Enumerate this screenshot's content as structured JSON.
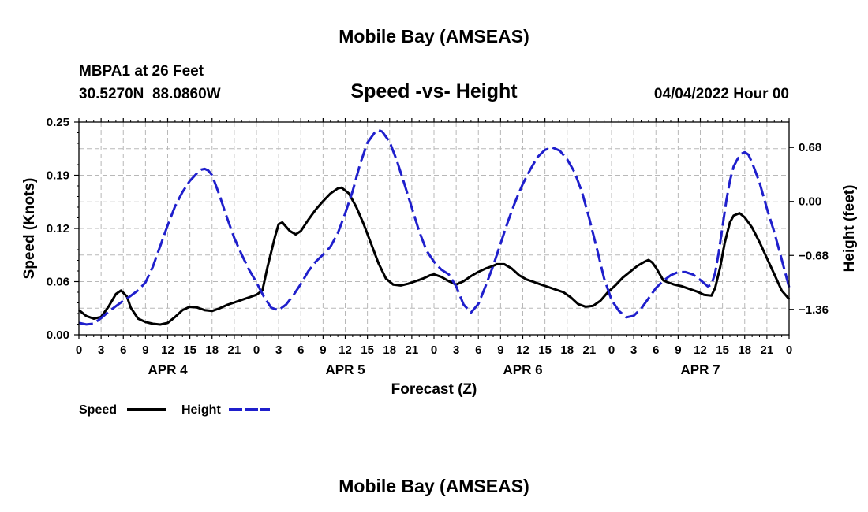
{
  "page": {
    "title": "Mobile Bay (AMSEAS)",
    "footer_title": "Mobile Bay (AMSEAS)"
  },
  "station": {
    "name_line": "MBPA1 at 26 Feet",
    "coords_line": "30.5270N  88.0860W",
    "date_line": "04/04/2022 Hour 00"
  },
  "chart_data": {
    "type": "line",
    "title": "Speed -vs- Height",
    "xlabel": "Forecast (Z)",
    "ylabel": "Speed (Knots)",
    "y2label": "Height (feet)",
    "xlim": [
      0,
      96
    ],
    "ylim": [
      0,
      0.25
    ],
    "y2lim": [
      -1.68,
      1.0
    ],
    "yticks": [
      "0.00",
      "0.06",
      "0.12",
      "0.19",
      "0.25"
    ],
    "y2ticks": [
      "0.68",
      "0.00",
      "−0.68",
      "−1.36"
    ],
    "y2tick_values": [
      0.68,
      0.0,
      -0.68,
      -1.36
    ],
    "xtick_labels": [
      "0",
      "3",
      "6",
      "9",
      "12",
      "15",
      "18",
      "21",
      "0",
      "3",
      "6",
      "9",
      "12",
      "15",
      "18",
      "21",
      "0",
      "3",
      "6",
      "9",
      "12",
      "15",
      "18",
      "21",
      "0",
      "3",
      "6",
      "9",
      "12",
      "15",
      "18",
      "21",
      "0"
    ],
    "day_labels": [
      {
        "label": "APR 4",
        "x": 12
      },
      {
        "label": "APR 5",
        "x": 36
      },
      {
        "label": "APR 6",
        "x": 60
      },
      {
        "label": "APR 7",
        "x": 84
      }
    ],
    "grid": true,
    "series": [
      {
        "name": "Speed",
        "color": "#000000",
        "axis": "left",
        "style": "solid",
        "points": [
          [
            0,
            0.029
          ],
          [
            1,
            0.022
          ],
          [
            2,
            0.019
          ],
          [
            3,
            0.021
          ],
          [
            4,
            0.033
          ],
          [
            5,
            0.048
          ],
          [
            5.7,
            0.052
          ],
          [
            6.5,
            0.045
          ],
          [
            7,
            0.032
          ],
          [
            8,
            0.019
          ],
          [
            9,
            0.015
          ],
          [
            10,
            0.013
          ],
          [
            11,
            0.012
          ],
          [
            12,
            0.014
          ],
          [
            13,
            0.021
          ],
          [
            14,
            0.029
          ],
          [
            15,
            0.033
          ],
          [
            16,
            0.032
          ],
          [
            17,
            0.029
          ],
          [
            18,
            0.028
          ],
          [
            19,
            0.031
          ],
          [
            20,
            0.035
          ],
          [
            21,
            0.038
          ],
          [
            22,
            0.041
          ],
          [
            23,
            0.044
          ],
          [
            24,
            0.047
          ],
          [
            24.8,
            0.052
          ],
          [
            25.5,
            0.08
          ],
          [
            26.5,
            0.115
          ],
          [
            27,
            0.13
          ],
          [
            27.5,
            0.132
          ],
          [
            28.5,
            0.122
          ],
          [
            29.3,
            0.118
          ],
          [
            30,
            0.122
          ],
          [
            31,
            0.135
          ],
          [
            32,
            0.147
          ],
          [
            33,
            0.157
          ],
          [
            34,
            0.166
          ],
          [
            35,
            0.172
          ],
          [
            35.5,
            0.173
          ],
          [
            36.5,
            0.166
          ],
          [
            37.5,
            0.15
          ],
          [
            38.5,
            0.13
          ],
          [
            39.5,
            0.107
          ],
          [
            40.5,
            0.084
          ],
          [
            41.5,
            0.066
          ],
          [
            42.5,
            0.059
          ],
          [
            43.5,
            0.058
          ],
          [
            44.5,
            0.06
          ],
          [
            45.5,
            0.063
          ],
          [
            46.5,
            0.066
          ],
          [
            47.5,
            0.07
          ],
          [
            48,
            0.071
          ],
          [
            49,
            0.068
          ],
          [
            50,
            0.063
          ],
          [
            51,
            0.059
          ],
          [
            52,
            0.063
          ],
          [
            53,
            0.069
          ],
          [
            54,
            0.074
          ],
          [
            55,
            0.078
          ],
          [
            56,
            0.081
          ],
          [
            56.5,
            0.083
          ],
          [
            57,
            0.083
          ],
          [
            57.5,
            0.083
          ],
          [
            58.5,
            0.078
          ],
          [
            59.5,
            0.07
          ],
          [
            60.5,
            0.065
          ],
          [
            61.5,
            0.062
          ],
          [
            62.5,
            0.059
          ],
          [
            63.5,
            0.056
          ],
          [
            64.5,
            0.053
          ],
          [
            65.5,
            0.05
          ],
          [
            66.5,
            0.044
          ],
          [
            67.5,
            0.036
          ],
          [
            68.5,
            0.033
          ],
          [
            69.5,
            0.034
          ],
          [
            70.5,
            0.04
          ],
          [
            71.5,
            0.05
          ],
          [
            72.5,
            0.058
          ],
          [
            73.5,
            0.067
          ],
          [
            74.5,
            0.074
          ],
          [
            75.5,
            0.081
          ],
          [
            76.5,
            0.086
          ],
          [
            77,
            0.088
          ],
          [
            77.5,
            0.085
          ],
          [
            78,
            0.079
          ],
          [
            79,
            0.064
          ],
          [
            79.5,
            0.062
          ],
          [
            80.5,
            0.059
          ],
          [
            81.5,
            0.057
          ],
          [
            82.5,
            0.054
          ],
          [
            83.5,
            0.051
          ],
          [
            84.5,
            0.047
          ],
          [
            85.5,
            0.046
          ],
          [
            86,
            0.055
          ],
          [
            86.7,
            0.08
          ],
          [
            87.3,
            0.108
          ],
          [
            88,
            0.132
          ],
          [
            88.5,
            0.14
          ],
          [
            89.3,
            0.143
          ],
          [
            90,
            0.138
          ],
          [
            91,
            0.126
          ],
          [
            92,
            0.109
          ],
          [
            93,
            0.09
          ],
          [
            94,
            0.071
          ],
          [
            95,
            0.052
          ],
          [
            96,
            0.042
          ]
        ]
      },
      {
        "name": "Height",
        "color": "#1f1fcc",
        "axis": "right",
        "style": "dashed",
        "points": [
          [
            0,
            -1.53
          ],
          [
            1,
            -1.55
          ],
          [
            2,
            -1.54
          ],
          [
            3,
            -1.47
          ],
          [
            4,
            -1.39
          ],
          [
            5,
            -1.32
          ],
          [
            6,
            -1.25
          ],
          [
            7,
            -1.19
          ],
          [
            8,
            -1.12
          ],
          [
            9,
            -1.02
          ],
          [
            10,
            -0.82
          ],
          [
            11,
            -0.56
          ],
          [
            12,
            -0.3
          ],
          [
            13,
            -0.06
          ],
          [
            14,
            0.12
          ],
          [
            15,
            0.26
          ],
          [
            16,
            0.36
          ],
          [
            16.5,
            0.4
          ],
          [
            17,
            0.41
          ],
          [
            17.5,
            0.39
          ],
          [
            18,
            0.33
          ],
          [
            19,
            0.08
          ],
          [
            20,
            -0.2
          ],
          [
            21,
            -0.46
          ],
          [
            22,
            -0.67
          ],
          [
            23,
            -0.86
          ],
          [
            24,
            -1.02
          ],
          [
            25,
            -1.2
          ],
          [
            26,
            -1.34
          ],
          [
            27,
            -1.37
          ],
          [
            28,
            -1.3
          ],
          [
            29,
            -1.18
          ],
          [
            30,
            -1.04
          ],
          [
            31,
            -0.88
          ],
          [
            32,
            -0.76
          ],
          [
            33,
            -0.67
          ],
          [
            34,
            -0.57
          ],
          [
            35,
            -0.4
          ],
          [
            36,
            -0.15
          ],
          [
            37,
            0.13
          ],
          [
            38,
            0.47
          ],
          [
            39,
            0.74
          ],
          [
            40,
            0.87
          ],
          [
            40.5,
            0.9
          ],
          [
            41,
            0.88
          ],
          [
            42,
            0.75
          ],
          [
            43,
            0.51
          ],
          [
            44,
            0.22
          ],
          [
            45,
            -0.08
          ],
          [
            46,
            -0.38
          ],
          [
            47,
            -0.62
          ],
          [
            48,
            -0.76
          ],
          [
            49,
            -0.86
          ],
          [
            50,
            -0.92
          ],
          [
            51,
            -1.07
          ],
          [
            52,
            -1.3
          ],
          [
            53,
            -1.4
          ],
          [
            54,
            -1.29
          ],
          [
            55,
            -1.06
          ],
          [
            56,
            -0.81
          ],
          [
            57,
            -0.53
          ],
          [
            58,
            -0.25
          ],
          [
            59,
            0.0
          ],
          [
            60,
            0.22
          ],
          [
            61,
            0.4
          ],
          [
            62,
            0.56
          ],
          [
            63,
            0.65
          ],
          [
            64,
            0.68
          ],
          [
            65,
            0.64
          ],
          [
            66,
            0.53
          ],
          [
            67,
            0.37
          ],
          [
            68,
            0.12
          ],
          [
            69,
            -0.22
          ],
          [
            70,
            -0.59
          ],
          [
            71,
            -0.97
          ],
          [
            72,
            -1.24
          ],
          [
            73,
            -1.38
          ],
          [
            74,
            -1.46
          ],
          [
            75,
            -1.44
          ],
          [
            76,
            -1.35
          ],
          [
            77,
            -1.22
          ],
          [
            78,
            -1.09
          ],
          [
            79,
            -1.0
          ],
          [
            80,
            -0.93
          ],
          [
            81,
            -0.89
          ],
          [
            82,
            -0.89
          ],
          [
            83,
            -0.92
          ],
          [
            84,
            -0.99
          ],
          [
            85,
            -1.07
          ],
          [
            85.5,
            -1.05
          ],
          [
            86,
            -0.9
          ],
          [
            86.5,
            -0.64
          ],
          [
            87,
            -0.32
          ],
          [
            87.5,
            0.0
          ],
          [
            88,
            0.26
          ],
          [
            88.5,
            0.44
          ],
          [
            89,
            0.53
          ],
          [
            89.5,
            0.6
          ],
          [
            90,
            0.62
          ],
          [
            90.5,
            0.59
          ],
          [
            91,
            0.49
          ],
          [
            92,
            0.24
          ],
          [
            93,
            -0.09
          ],
          [
            94,
            -0.39
          ],
          [
            95,
            -0.73
          ],
          [
            96,
            -1.08
          ]
        ]
      }
    ],
    "legend": {
      "position": "bottom-left",
      "entries": [
        "Speed",
        "Height"
      ]
    }
  }
}
